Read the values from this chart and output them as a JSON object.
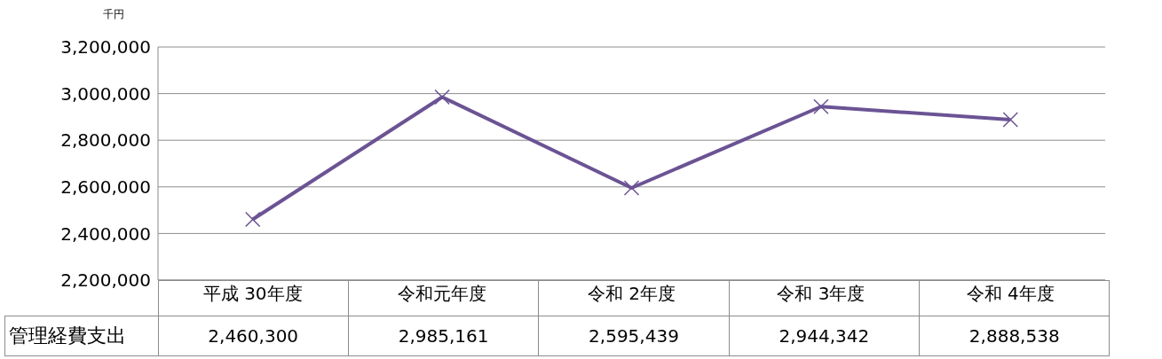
{
  "chart_data": {
    "type": "line",
    "ylabel": "千円",
    "categories": [
      "平成 30年度",
      "令和元年度",
      "令和 2年度",
      "令和 3年度",
      "令和 4年度"
    ],
    "series": [
      {
        "name": "管理経費支出",
        "color": "#6b5394",
        "values": [
          2460300,
          2985161,
          2595439,
          2944342,
          2888538
        ],
        "value_labels": [
          "2,460,300",
          "2,985,161",
          "2,595,439",
          "2,944,342",
          "2,888,538"
        ]
      }
    ],
    "ylim": [
      2200000,
      3200000
    ],
    "yticks": [
      {
        "value": 2200000,
        "label": "2,200,000"
      },
      {
        "value": 2400000,
        "label": "2,400,000"
      },
      {
        "value": 2600000,
        "label": "2,600,000"
      },
      {
        "value": 2800000,
        "label": "2,800,000"
      },
      {
        "value": 3000000,
        "label": "3,000,000"
      },
      {
        "value": 3200000,
        "label": "3,200,000"
      }
    ],
    "grid": "y",
    "marker": "cross",
    "line_style": "solid"
  }
}
